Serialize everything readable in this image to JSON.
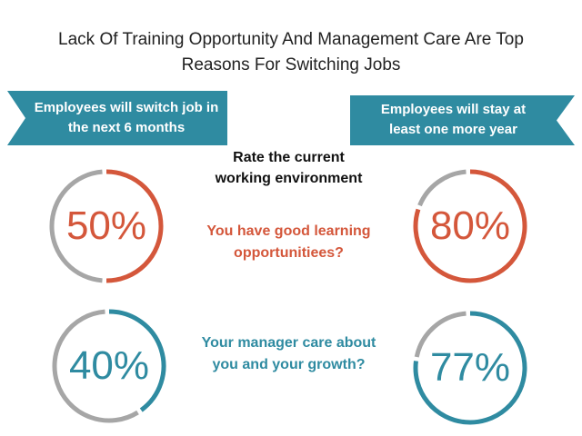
{
  "title_lines": [
    "Lack Of Training Opportunity And Management Care Are Top",
    "Reasons For Switching Jobs"
  ],
  "left_banner_lines": [
    "Employees will switch job in",
    "the next 6 months"
  ],
  "right_banner_lines": [
    "Employees will stay at",
    "least one more year"
  ],
  "center_heading_lines": [
    "Rate the current",
    "working environment"
  ],
  "colors": {
    "orange": "#d4573b",
    "teal": "#2f8ba1",
    "gray": "#a6a6a6"
  },
  "chart_data": [
    {
      "type": "pie",
      "question_lines": [
        "You have good learning",
        "opportunitiees?"
      ],
      "series": [
        {
          "group": "left",
          "value": 50,
          "label": "50%"
        },
        {
          "group": "right",
          "value": 80,
          "label": "80%"
        }
      ]
    },
    {
      "type": "pie",
      "question_lines": [
        "Your manager care about",
        "you and your growth?"
      ],
      "series": [
        {
          "group": "left",
          "value": 40,
          "label": "40%"
        },
        {
          "group": "right",
          "value": 77,
          "label": "77%"
        }
      ]
    }
  ]
}
